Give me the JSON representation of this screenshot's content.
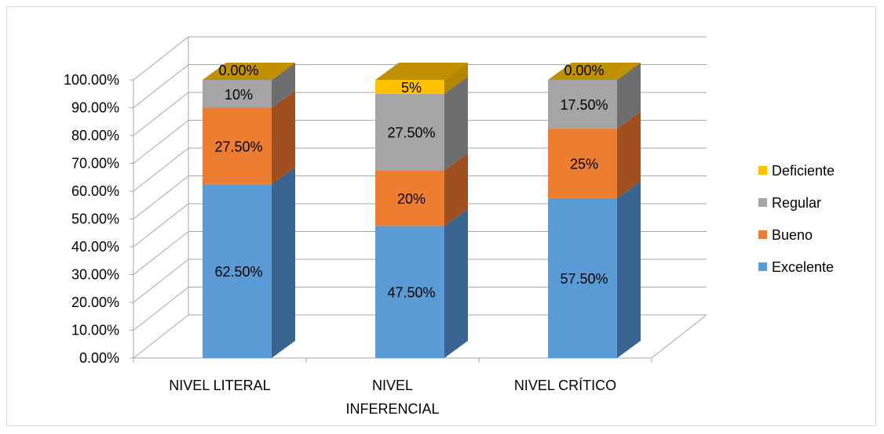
{
  "chart_data": {
    "type": "bar",
    "stacked": true,
    "three_d": true,
    "categories": [
      "NIVEL LITERAL",
      "NIVEL INFERENCIAL",
      "NIVEL CRÍTICO"
    ],
    "category_label_lines": [
      [
        "NIVEL LITERAL"
      ],
      [
        "NIVEL",
        "INFERENCIAL"
      ],
      [
        "NIVEL CRÍTICO"
      ]
    ],
    "series": [
      {
        "name": "Excelente",
        "values": [
          62.5,
          47.5,
          57.5
        ],
        "labels": [
          "62.50%",
          "47.50%",
          "57.50%"
        ],
        "color": "#5b9bd5",
        "side_color": "#3a6591"
      },
      {
        "name": "Bueno",
        "values": [
          27.5,
          20,
          25
        ],
        "labels": [
          "27.50%",
          "20%",
          "25%"
        ],
        "color": "#ed7d31",
        "side_color": "#a0501f"
      },
      {
        "name": "Regular",
        "values": [
          10,
          27.5,
          17.5
        ],
        "labels": [
          "10%",
          "27.50%",
          "17.50%"
        ],
        "color": "#a5a5a5",
        "side_color": "#6e6e6e"
      },
      {
        "name": "Deficiente",
        "values": [
          0,
          5,
          0
        ],
        "labels": [
          "0.00%",
          "5%",
          "0.00%"
        ],
        "color": "#ffc000",
        "side_color": "#b38600",
        "top_color": "#c09000"
      }
    ],
    "y_ticks": [
      "0.00%",
      "10.00%",
      "20.00%",
      "30.00%",
      "40.00%",
      "50.00%",
      "60.00%",
      "70.00%",
      "80.00%",
      "90.00%",
      "100.00%"
    ],
    "ylim": [
      0,
      100
    ],
    "grid": true,
    "legend_position": "right",
    "legend_order": [
      "Deficiente",
      "Regular",
      "Bueno",
      "Excelente"
    ],
    "title": "",
    "xlabel": "",
    "ylabel": ""
  }
}
